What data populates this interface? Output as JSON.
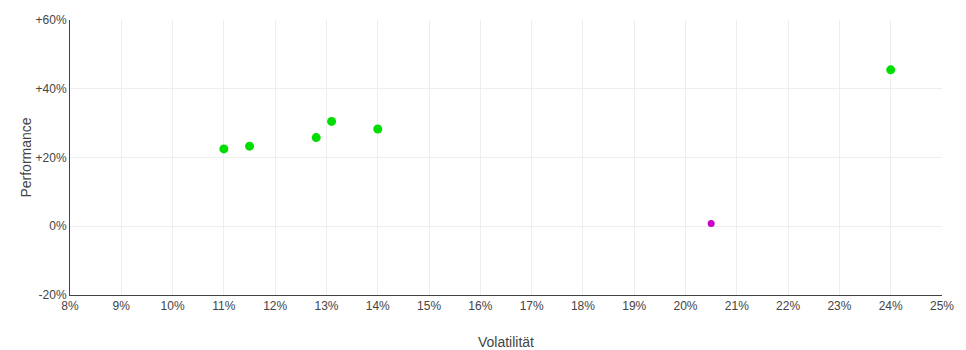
{
  "chart_data": {
    "type": "scatter",
    "xlabel": "Volatilität",
    "ylabel": "Performance",
    "marker": "circle",
    "grid": true,
    "xlim": [
      0.08,
      0.25
    ],
    "ylim": [
      -0.2,
      0.6
    ],
    "xticks": [
      {
        "value": 0.08,
        "label": "8%"
      },
      {
        "value": 0.09,
        "label": "9%"
      },
      {
        "value": 0.1,
        "label": "10%"
      },
      {
        "value": 0.11,
        "label": "11%"
      },
      {
        "value": 0.12,
        "label": "12%"
      },
      {
        "value": 0.13,
        "label": "13%"
      },
      {
        "value": 0.14,
        "label": "14%"
      },
      {
        "value": 0.15,
        "label": "15%"
      },
      {
        "value": 0.16,
        "label": "16%"
      },
      {
        "value": 0.17,
        "label": "17%"
      },
      {
        "value": 0.18,
        "label": "18%"
      },
      {
        "value": 0.19,
        "label": "19%"
      },
      {
        "value": 0.2,
        "label": "20%"
      },
      {
        "value": 0.21,
        "label": "21%"
      },
      {
        "value": 0.22,
        "label": "22%"
      },
      {
        "value": 0.23,
        "label": "23%"
      },
      {
        "value": 0.24,
        "label": "24%"
      },
      {
        "value": 0.25,
        "label": "25%"
      }
    ],
    "yticks": [
      {
        "value": -0.2,
        "label": "-20%"
      },
      {
        "value": 0.0,
        "label": "0%"
      },
      {
        "value": 0.2,
        "label": "+20%"
      },
      {
        "value": 0.4,
        "label": "+40%"
      },
      {
        "value": 0.6,
        "label": "+60%"
      }
    ],
    "series": [
      {
        "color": "#00dd00",
        "x": [
          0.11,
          0.115,
          0.128,
          0.131,
          0.14,
          0.24
        ],
        "values": [
          0.225,
          0.233,
          0.258,
          0.305,
          0.283,
          0.455
        ]
      },
      {
        "color": "#cc00cc",
        "x": [
          0.205
        ],
        "values": [
          0.008
        ]
      }
    ]
  }
}
